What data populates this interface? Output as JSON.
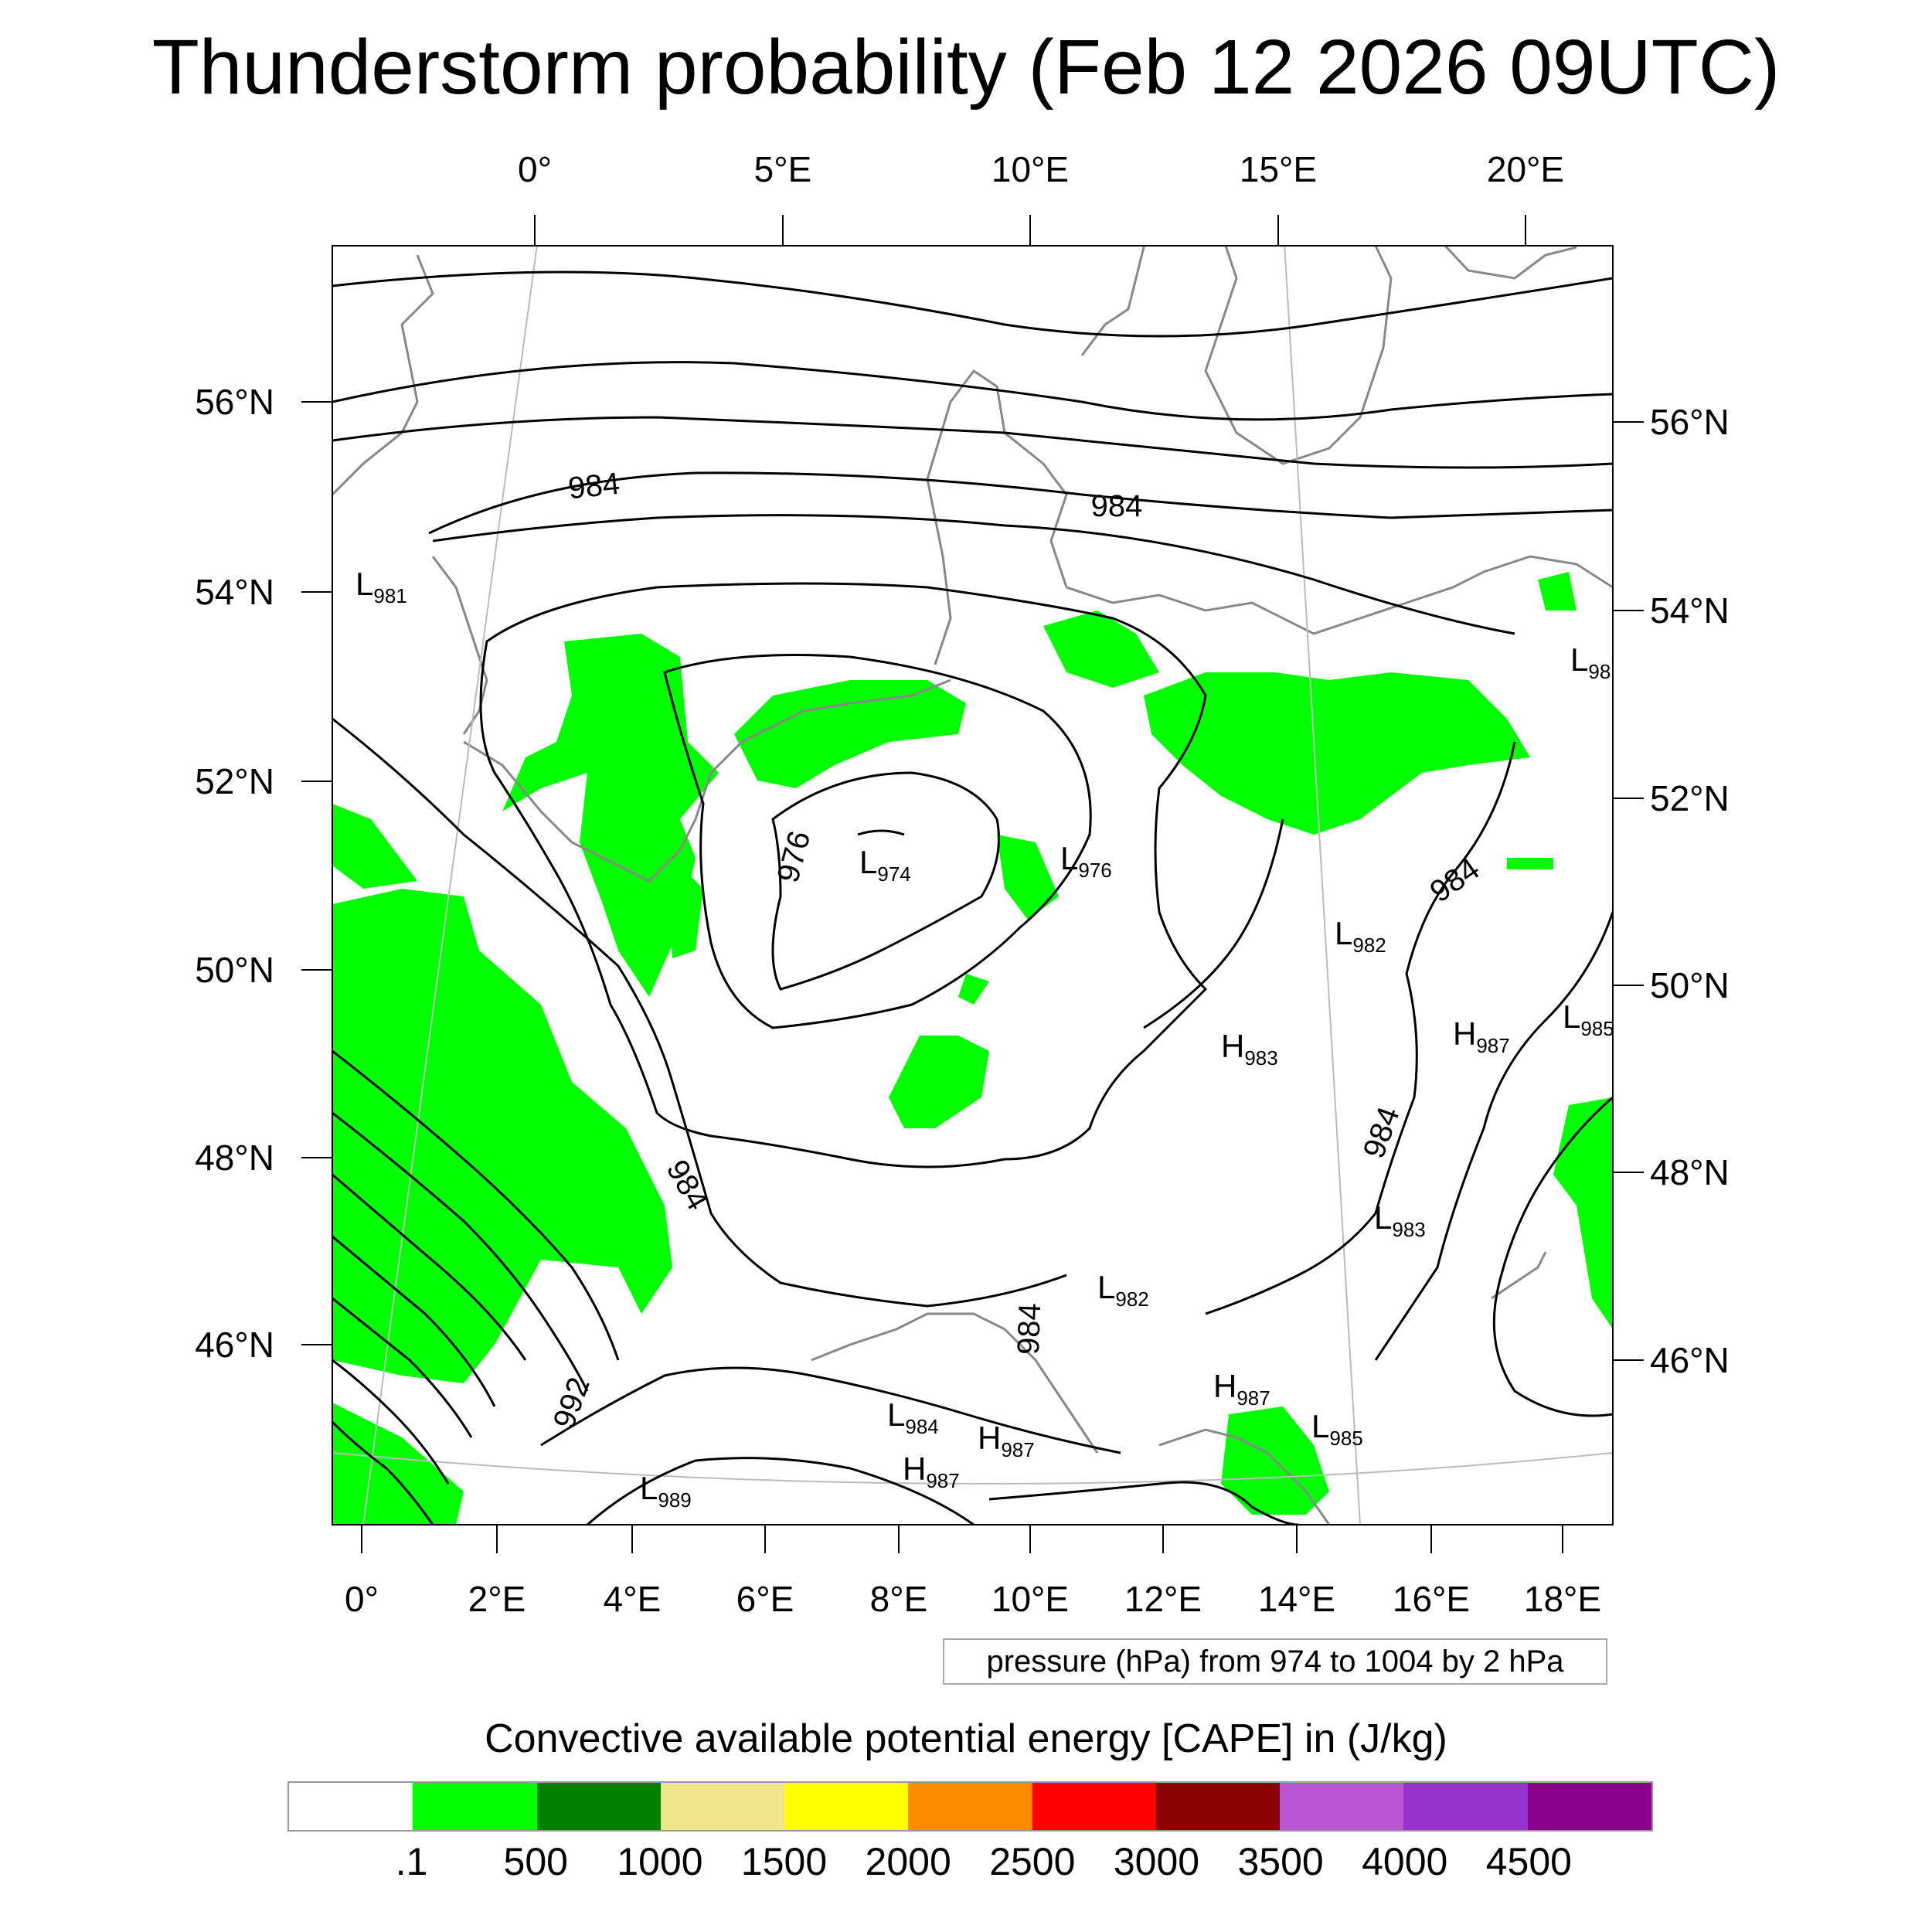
{
  "title": "Thunderstorm probability (Feb 12 2026 09UTC)",
  "top_lon_labels": [
    "0°",
    "5°E",
    "10°E",
    "15°E",
    "20°E"
  ],
  "bottom_lon_labels": [
    "0°",
    "2°E",
    "4°E",
    "6°E",
    "8°E",
    "10°E",
    "12°E",
    "14°E",
    "16°E",
    "18°E"
  ],
  "left_lat_labels": [
    "56°N",
    "54°N",
    "52°N",
    "50°N",
    "48°N",
    "46°N"
  ],
  "right_lat_labels": [
    "56°N",
    "54°N",
    "52°N",
    "50°N",
    "48°N",
    "46°N"
  ],
  "contour_labels": [
    "984",
    "984",
    "976",
    "984",
    "984",
    "984",
    "984",
    "992"
  ],
  "pressure_centers": [
    {
      "type": "L",
      "value": "981"
    },
    {
      "type": "L",
      "value": "974"
    },
    {
      "type": "L",
      "value": "976"
    },
    {
      "type": "L",
      "value": "982"
    },
    {
      "type": "H",
      "value": "983"
    },
    {
      "type": "H",
      "value": "987"
    },
    {
      "type": "L",
      "value": "985"
    },
    {
      "type": "L",
      "value": "98"
    },
    {
      "type": "L",
      "value": "983"
    },
    {
      "type": "L",
      "value": "982"
    },
    {
      "type": "L",
      "value": "984"
    },
    {
      "type": "H",
      "value": "987"
    },
    {
      "type": "H",
      "value": "987"
    },
    {
      "type": "H",
      "value": "987"
    },
    {
      "type": "L",
      "value": "985"
    },
    {
      "type": "L",
      "value": "989"
    }
  ],
  "pressure_note": "pressure (hPa) from 974 to 1004 by 2 hPa",
  "colorbar_title": "Convective available potential energy [CAPE] in (J/kg)",
  "colorbar_colors": [
    "#ffffff",
    "#00ff00",
    "#008000",
    "#f0e68c",
    "#ffff00",
    "#ff8c00",
    "#ff0000",
    "#8b0000",
    "#ba55d3",
    "#9932cc",
    "#8b008b"
  ],
  "colorbar_labels": [
    ".1",
    "500",
    "1000",
    "1500",
    "2000",
    "2500",
    "3000",
    "3500",
    "4000",
    "4500"
  ],
  "cape_fill_color": "#00ff00",
  "contour_color": "#000000",
  "coast_color": "#888888"
}
